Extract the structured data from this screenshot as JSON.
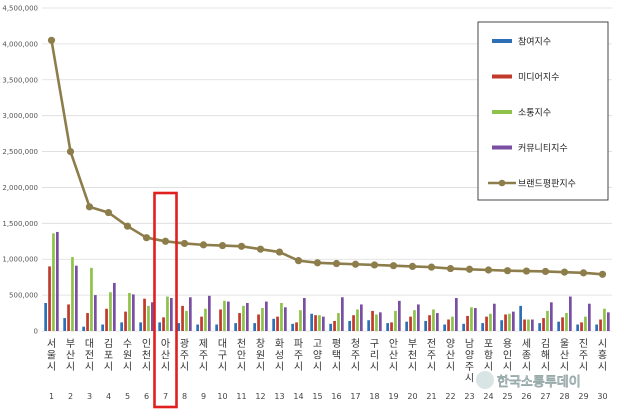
{
  "chart_data": {
    "type": "bar",
    "ylim": [
      0,
      4500000
    ],
    "yticks": [
      0,
      500000,
      1000000,
      1500000,
      2000000,
      2500000,
      3000000,
      3500000,
      4000000,
      4500000
    ],
    "yticklabels": [
      "0",
      "500,000",
      "1,000,000",
      "1,500,000",
      "2,000,000",
      "2,500,000",
      "3,000,000",
      "3,500,000",
      "4,000,000",
      "4,500,000"
    ],
    "categories": [
      "서울시",
      "부산시",
      "대전시",
      "김포시",
      "수원시",
      "인천시",
      "아산시",
      "광주시",
      "제주시",
      "대구시",
      "천안시",
      "창원시",
      "화성시",
      "파주시",
      "고양시",
      "평택시",
      "청주시",
      "구리시",
      "안산시",
      "부천시",
      "전주시",
      "양산시",
      "남양주시",
      "포항시",
      "용인시",
      "세종시",
      "김해시",
      "울산시",
      "진주시",
      "시흥시"
    ],
    "index_labels": [
      "1",
      "2",
      "3",
      "4",
      "5",
      "6",
      "7",
      "8",
      "9",
      "10",
      "11",
      "12",
      "13",
      "14",
      "15",
      "16",
      "17",
      "18",
      "19",
      "20",
      "21",
      "22",
      "23",
      "24",
      "25",
      "26",
      "27",
      "28",
      "29",
      "30"
    ],
    "series": [
      {
        "name": "참여지수",
        "color": "#2e6fb5",
        "values": [
          390000,
          180000,
          60000,
          90000,
          120000,
          120000,
          120000,
          110000,
          90000,
          90000,
          110000,
          110000,
          170000,
          100000,
          240000,
          100000,
          140000,
          150000,
          110000,
          130000,
          140000,
          90000,
          100000,
          110000,
          150000,
          350000,
          110000,
          130000,
          90000,
          90000
        ]
      },
      {
        "name": "미디어지수",
        "color": "#c0392b",
        "values": [
          900000,
          370000,
          250000,
          310000,
          270000,
          450000,
          190000,
          350000,
          200000,
          300000,
          250000,
          230000,
          200000,
          120000,
          220000,
          140000,
          220000,
          280000,
          120000,
          200000,
          220000,
          160000,
          210000,
          200000,
          230000,
          160000,
          180000,
          190000,
          120000,
          160000
        ]
      },
      {
        "name": "소통지수",
        "color": "#8fc24a",
        "values": [
          1360000,
          1030000,
          880000,
          540000,
          530000,
          350000,
          480000,
          280000,
          310000,
          420000,
          350000,
          320000,
          390000,
          290000,
          220000,
          250000,
          300000,
          230000,
          280000,
          290000,
          300000,
          200000,
          330000,
          240000,
          240000,
          160000,
          280000,
          250000,
          200000,
          310000
        ]
      },
      {
        "name": "커뮤니티지수",
        "color": "#7a4fa3",
        "values": [
          1380000,
          910000,
          500000,
          670000,
          510000,
          400000,
          460000,
          470000,
          490000,
          410000,
          390000,
          410000,
          330000,
          460000,
          200000,
          470000,
          370000,
          260000,
          420000,
          370000,
          250000,
          460000,
          320000,
          380000,
          270000,
          160000,
          400000,
          480000,
          380000,
          260000
        ]
      }
    ],
    "line": {
      "name": "브랜드평판지수",
      "color": "#8c7d4a",
      "values": [
        4050000,
        2500000,
        1730000,
        1650000,
        1460000,
        1300000,
        1250000,
        1220000,
        1200000,
        1190000,
        1180000,
        1140000,
        1100000,
        980000,
        950000,
        940000,
        930000,
        920000,
        910000,
        900000,
        890000,
        870000,
        860000,
        850000,
        840000,
        835000,
        830000,
        820000,
        810000,
        790000
      ]
    },
    "highlight_index": 6,
    "highlight_color": "#e02020",
    "legend_position": "right"
  },
  "watermark": {
    "text": "한국소통투데이"
  }
}
